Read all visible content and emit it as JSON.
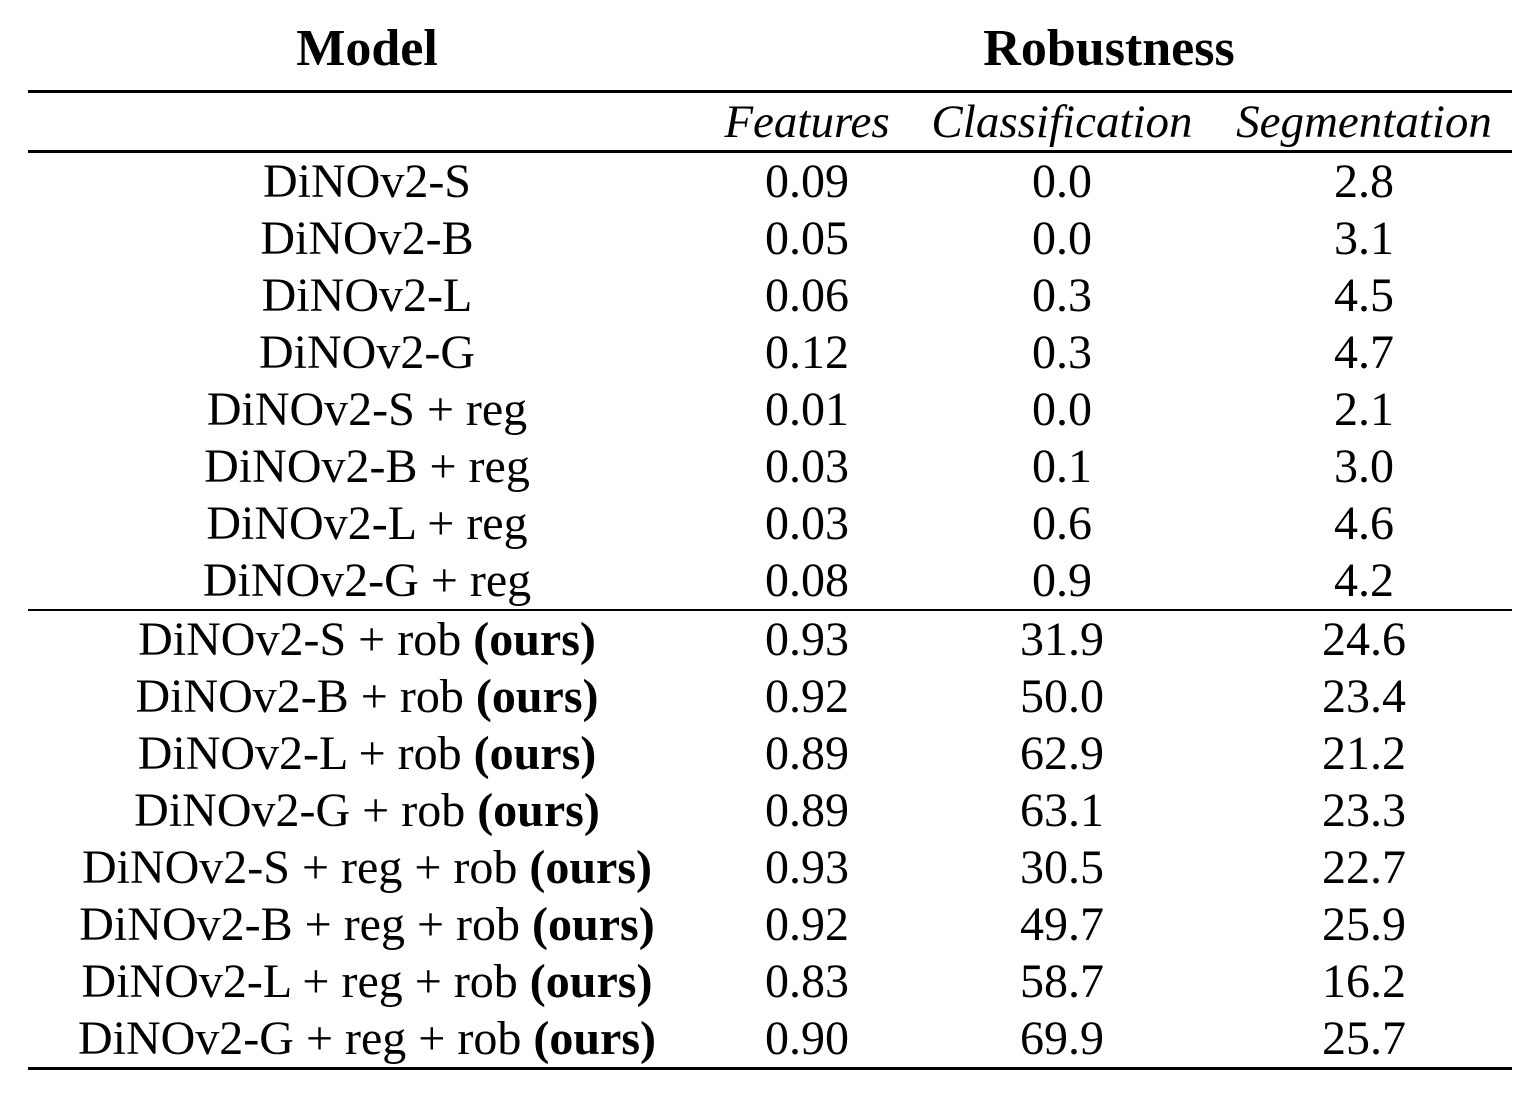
{
  "page": {
    "background": "#ffffff",
    "text_color": "#000000",
    "rule_color": "#000000"
  },
  "table": {
    "header": {
      "model": "Model",
      "robustness": "Robustness"
    },
    "subheader": {
      "features": "Features",
      "classification": "Classification",
      "segmentation": "Segmentation"
    },
    "rows": [
      {
        "model_plain": "DiNOv2-S",
        "model_bold": "",
        "features": "0.09",
        "classification": "0.0",
        "segmentation": "2.8"
      },
      {
        "model_plain": "DiNOv2-B",
        "model_bold": "",
        "features": "0.05",
        "classification": "0.0",
        "segmentation": "3.1"
      },
      {
        "model_plain": "DiNOv2-L",
        "model_bold": "",
        "features": "0.06",
        "classification": "0.3",
        "segmentation": "4.5"
      },
      {
        "model_plain": "DiNOv2-G",
        "model_bold": "",
        "features": "0.12",
        "classification": "0.3",
        "segmentation": "4.7"
      },
      {
        "model_plain": "DiNOv2-S + reg",
        "model_bold": "",
        "features": "0.01",
        "classification": "0.0",
        "segmentation": "2.1"
      },
      {
        "model_plain": "DiNOv2-B + reg",
        "model_bold": "",
        "features": "0.03",
        "classification": "0.1",
        "segmentation": "3.0"
      },
      {
        "model_plain": "DiNOv2-L + reg",
        "model_bold": "",
        "features": "0.03",
        "classification": "0.6",
        "segmentation": "4.6"
      },
      {
        "model_plain": "DiNOv2-G + reg",
        "model_bold": "",
        "features": "0.08",
        "classification": "0.9",
        "segmentation": "4.2"
      },
      {
        "model_plain": "DiNOv2-S + rob ",
        "model_bold": "(ours)",
        "features": "0.93",
        "classification": "31.9",
        "segmentation": "24.6"
      },
      {
        "model_plain": "DiNOv2-B + rob ",
        "model_bold": "(ours)",
        "features": "0.92",
        "classification": "50.0",
        "segmentation": "23.4"
      },
      {
        "model_plain": "DiNOv2-L + rob ",
        "model_bold": "(ours)",
        "features": "0.89",
        "classification": "62.9",
        "segmentation": "21.2"
      },
      {
        "model_plain": "DiNOv2-G + rob ",
        "model_bold": "(ours)",
        "features": "0.89",
        "classification": "63.1",
        "segmentation": "23.3"
      },
      {
        "model_plain": "DiNOv2-S + reg + rob ",
        "model_bold": "(ours)",
        "features": "0.93",
        "classification": "30.5",
        "segmentation": "22.7"
      },
      {
        "model_plain": "DiNOv2-B + reg + rob ",
        "model_bold": "(ours)",
        "features": "0.92",
        "classification": "49.7",
        "segmentation": "25.9"
      },
      {
        "model_plain": "DiNOv2-L + reg + rob ",
        "model_bold": "(ours)",
        "features": "0.83",
        "classification": "58.7",
        "segmentation": "16.2"
      },
      {
        "model_plain": "DiNOv2-G + reg + rob ",
        "model_bold": "(ours)",
        "features": "0.90",
        "classification": "69.9",
        "segmentation": "25.7"
      }
    ]
  }
}
